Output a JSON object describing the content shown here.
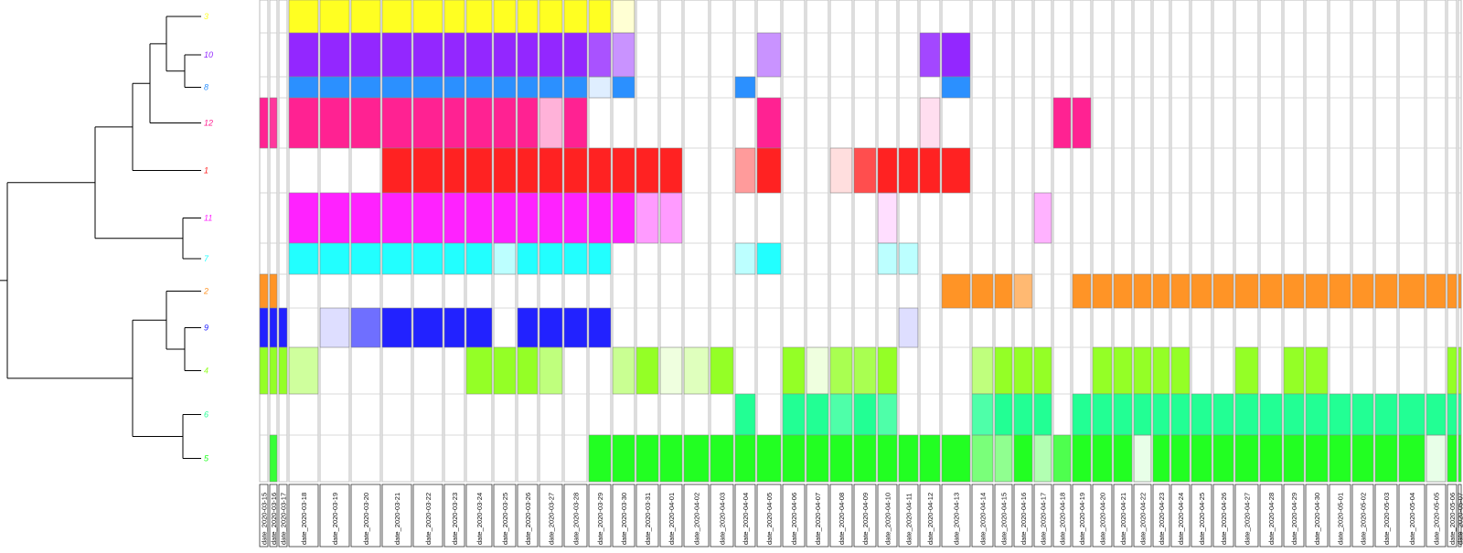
{
  "chart_data": {
    "type": "heatmap",
    "title": "",
    "rows": [
      "3",
      "10",
      "8",
      "12",
      "1",
      "11",
      "7",
      "2",
      "9",
      "4",
      "6",
      "5"
    ],
    "row_colors": {
      "3": "#FFFF22",
      "10": "#9327FF",
      "8": "#2B90FF",
      "12": "#FF2292",
      "1": "#FF2222",
      "11": "#FF22FF",
      "7": "#22FFFF",
      "2": "#FF9426",
      "9": "#2222FF",
      "4": "#94FF26",
      "6": "#22FF94",
      "5": "#22FF22"
    },
    "columns": [
      "date_2020-03-15",
      "date_2020-03-16",
      "date_2020-03-17",
      "date_2020-03-18",
      "date_2020-03-19",
      "date_2020-03-20",
      "date_2020-03-21",
      "date_2020-03-22",
      "date_2020-03-23",
      "date_2020-03-24",
      "date_2020-03-25",
      "date_2020-03-26",
      "date_2020-03-27",
      "date_2020-03-28",
      "date_2020-03-29",
      "date_2020-03-30",
      "date_2020-03-31",
      "date_2020-04-01",
      "date_2020-04-02",
      "date_2020-04-03",
      "date_2020-04-04",
      "date_2020-04-05",
      "date_2020-04-06",
      "date_2020-04-07",
      "date_2020-04-08",
      "date_2020-04-09",
      "date_2020-04-10",
      "date_2020-04-11",
      "date_2020-04-12",
      "date_2020-04-13",
      "date_2020-04-14",
      "date_2020-04-15",
      "date_2020-04-16",
      "date_2020-04-17",
      "date_2020-04-18",
      "date_2020-04-19",
      "date_2020-04-20",
      "date_2020-04-21",
      "date_2020-04-22",
      "date_2020-04-23",
      "date_2020-04-24",
      "date_2020-04-25",
      "date_2020-04-26",
      "date_2020-04-27",
      "date_2020-04-28",
      "date_2020-04-29",
      "date_2020-04-30",
      "date_2020-05-01",
      "date_2020-05-02",
      "date_2020-05-03",
      "date_2020-05-04",
      "date_2020-05-05",
      "date_2020-05-06",
      "date_2020-05-07"
    ],
    "values": [
      [
        0,
        0,
        0,
        1,
        1,
        1,
        1,
        1,
        1,
        1,
        1,
        1,
        1,
        1,
        1,
        0.2,
        0,
        0,
        0,
        0,
        0,
        0,
        0,
        0,
        0,
        0,
        0,
        0,
        0,
        0,
        0,
        0,
        0,
        0,
        0,
        0,
        0,
        0,
        0,
        0,
        0,
        0,
        0,
        0,
        0,
        0,
        0,
        0,
        0,
        0,
        0,
        0,
        0,
        0
      ],
      [
        0,
        0,
        0,
        1,
        1,
        1,
        1,
        1,
        1,
        1,
        1,
        1,
        1,
        1,
        0.8,
        0.5,
        0,
        0,
        0,
        0,
        0,
        0.5,
        0,
        0,
        0,
        0,
        0,
        0,
        0.85,
        1,
        0,
        0,
        0,
        0,
        0,
        0,
        0,
        0,
        0,
        0,
        0,
        0,
        0,
        0,
        0,
        0,
        0,
        0,
        0,
        0,
        0,
        0,
        0,
        0
      ],
      [
        0,
        0,
        0,
        1,
        1,
        1,
        1,
        1,
        1,
        1,
        1,
        1,
        1,
        1,
        0.15,
        1,
        0,
        0,
        0,
        0,
        1,
        0,
        0,
        0,
        0,
        0,
        0,
        0,
        0,
        1,
        0,
        0,
        0,
        0,
        0,
        0,
        0,
        0,
        0,
        0,
        0,
        0,
        0,
        0,
        0,
        0,
        0,
        0,
        0,
        0,
        0,
        0,
        0,
        0
      ],
      [
        1,
        0.9,
        0,
        1,
        1,
        1,
        1,
        1,
        1,
        1,
        1,
        1,
        0.35,
        1,
        0,
        0,
        0,
        0,
        0,
        0,
        0,
        1,
        0,
        0,
        0,
        0,
        0,
        0,
        0.15,
        0,
        0,
        0,
        0,
        0,
        1,
        1,
        0,
        0,
        0,
        0,
        0,
        0,
        0,
        0,
        0,
        0,
        0,
        0,
        0,
        0,
        0,
        0,
        0,
        0
      ],
      [
        0,
        0,
        0,
        0,
        0,
        0,
        1,
        1,
        1,
        1,
        1,
        1,
        1,
        1,
        1,
        1,
        1,
        1,
        0,
        0,
        0.45,
        1,
        0,
        0,
        0.15,
        0.8,
        1,
        1,
        1,
        1,
        0,
        0,
        0,
        0,
        0,
        0,
        0,
        0,
        0,
        0,
        0,
        0,
        0,
        0,
        0,
        0,
        0,
        0,
        0,
        0,
        0,
        0,
        0,
        0
      ],
      [
        0,
        0,
        0,
        1,
        1,
        1,
        1,
        1,
        1,
        1,
        1,
        1,
        1,
        1,
        1,
        1,
        0.45,
        0.45,
        0,
        0,
        0,
        0,
        0,
        0,
        0,
        0,
        0.15,
        0,
        0,
        0,
        0,
        0,
        0,
        0.35,
        0,
        0,
        0,
        0,
        0,
        0,
        0,
        0,
        0,
        0,
        0,
        0,
        0,
        0,
        0,
        0,
        0,
        0,
        0,
        0
      ],
      [
        0,
        0,
        0,
        1,
        1,
        1,
        1,
        1,
        1,
        1,
        0.3,
        1,
        1,
        1,
        1,
        0,
        0,
        0,
        0,
        0,
        0.3,
        1,
        0,
        0,
        0,
        0,
        0.3,
        0.3,
        0,
        0,
        0,
        0,
        0,
        0,
        0,
        0,
        0,
        0,
        0,
        0,
        0,
        0,
        0,
        0,
        0,
        0,
        0,
        0,
        0,
        0,
        0,
        0,
        0,
        0
      ],
      [
        1,
        1,
        0,
        0,
        0,
        0,
        0,
        0,
        0,
        0,
        0,
        0,
        0,
        0,
        0,
        0,
        0,
        0,
        0,
        0,
        0,
        0,
        0,
        0,
        0,
        0,
        0,
        0,
        0,
        1,
        1,
        1,
        0.65,
        0,
        0,
        1,
        1,
        1,
        1,
        1,
        1,
        1,
        1,
        1,
        1,
        1,
        1,
        1,
        1,
        1,
        1,
        1,
        1,
        1
      ],
      [
        1,
        1,
        1,
        0,
        0.15,
        0.65,
        1,
        1,
        1,
        1,
        0,
        1,
        1,
        1,
        1,
        0,
        0,
        0,
        0,
        0,
        0,
        0,
        0,
        0,
        0,
        0,
        0,
        0.15,
        0,
        0,
        0,
        0,
        0,
        0,
        0,
        0,
        0,
        0,
        0,
        0,
        0,
        0,
        0,
        0,
        0,
        0,
        0,
        0,
        0,
        0,
        0,
        0,
        0,
        0
      ],
      [
        1,
        1,
        1,
        0.45,
        0,
        0,
        0,
        0,
        0,
        1,
        1,
        1,
        0.6,
        0,
        0,
        0.5,
        1,
        0.15,
        0.3,
        1,
        0,
        0,
        1,
        0.15,
        0.8,
        0.8,
        1,
        0,
        0,
        0,
        0.6,
        1,
        1,
        1,
        0,
        0,
        1,
        1,
        1,
        1,
        1,
        0,
        0,
        1,
        0,
        1,
        1,
        0,
        0,
        0,
        0,
        0,
        1,
        1
      ],
      [
        0,
        0,
        0,
        0,
        0,
        0,
        0,
        0,
        0,
        0,
        0,
        0,
        0,
        0,
        0,
        0,
        0,
        0,
        0,
        0,
        1,
        0,
        1,
        1,
        0.8,
        1,
        0.8,
        0,
        0,
        0,
        0.8,
        1,
        1,
        1,
        0,
        1,
        1,
        1,
        1,
        1,
        1,
        1,
        1,
        1,
        1,
        1,
        1,
        1,
        1,
        1,
        1,
        1,
        1,
        1
      ],
      [
        0,
        0.9,
        0,
        0,
        0,
        0,
        0,
        0,
        0,
        0,
        0,
        0,
        0,
        0,
        1,
        1,
        1,
        1,
        1,
        1,
        1,
        1,
        1,
        1,
        1,
        1,
        1,
        1,
        1,
        1,
        0.6,
        0.5,
        1,
        0.35,
        0.8,
        1,
        1,
        1,
        0.1,
        1,
        1,
        1,
        1,
        1,
        1,
        1,
        1,
        1,
        1,
        1,
        1,
        0.1,
        1,
        1
      ]
    ],
    "dendrogram": {
      "tips_order": [
        "3",
        "10",
        "8",
        "12",
        "1",
        "11",
        "7",
        "2",
        "9",
        "4",
        "6",
        "5"
      ]
    },
    "legend": "none"
  }
}
